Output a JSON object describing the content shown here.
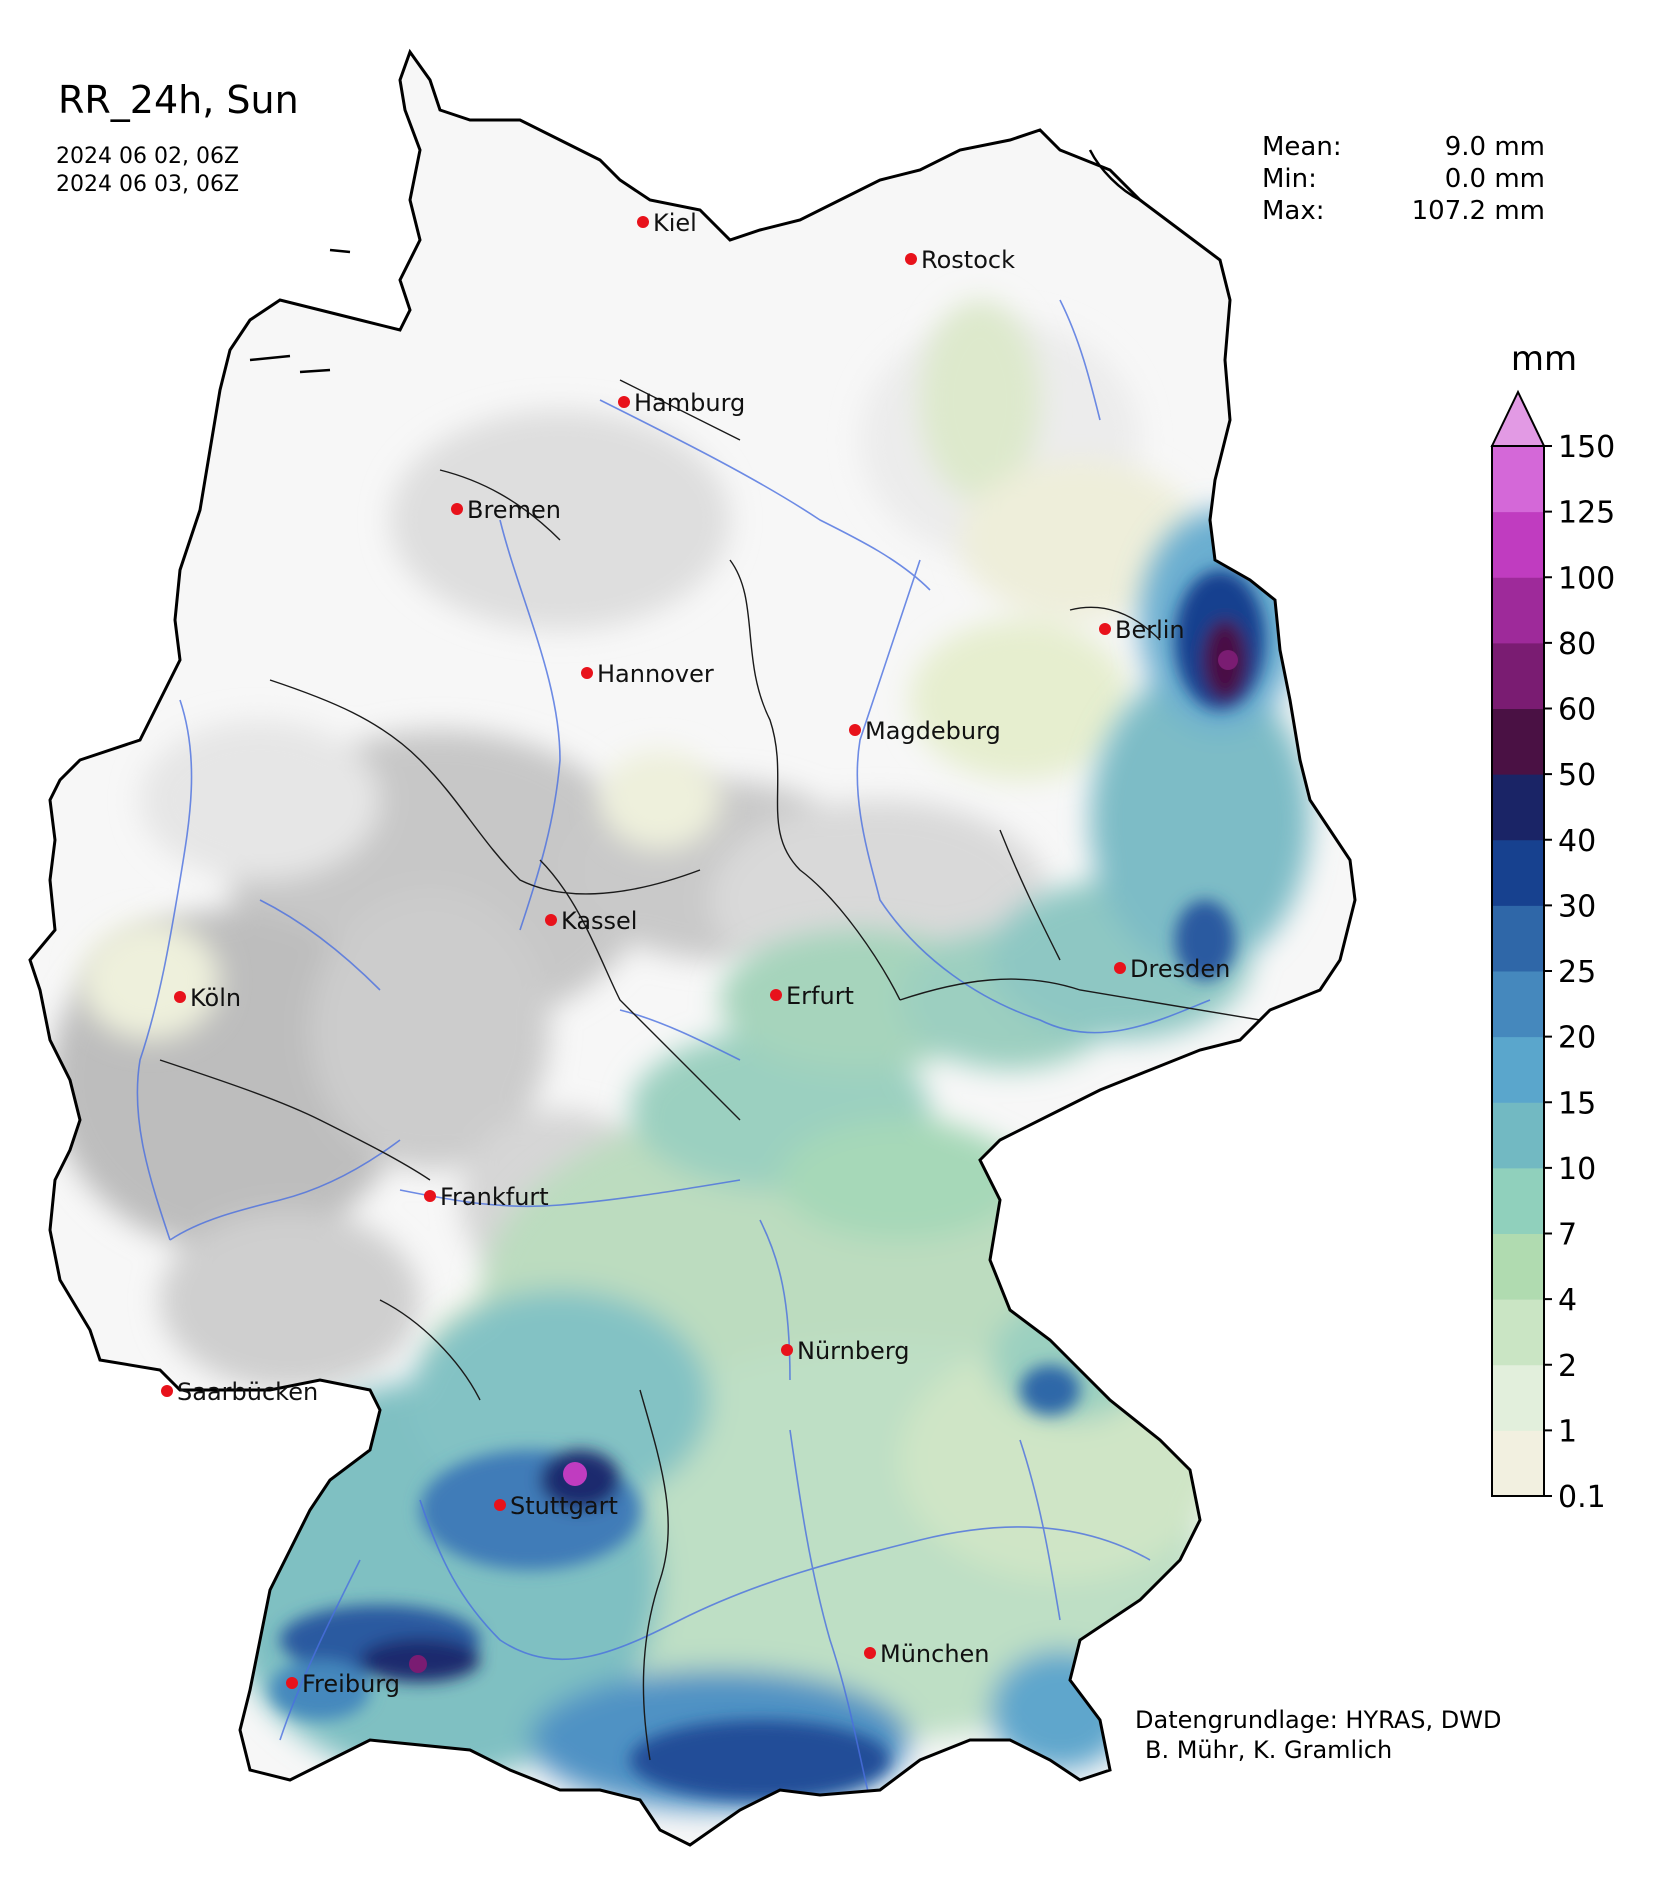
{
  "title": "RR_24h, Sun",
  "time_range": [
    "2024 06 02, 06Z",
    "2024 06 03, 06Z"
  ],
  "stats": [
    {
      "label": "Mean:",
      "value": "9.0 mm"
    },
    {
      "label": "Min:",
      "value": "0.0 mm"
    },
    {
      "label": "Max:",
      "value": "107.2 mm"
    }
  ],
  "colorbar": {
    "unit": "mm",
    "levels": [
      "0.1",
      "1",
      "2",
      "4",
      "7",
      "10",
      "15",
      "20",
      "25",
      "30",
      "40",
      "50",
      "60",
      "80",
      "100",
      "125",
      "150"
    ],
    "colors": [
      "#f2f0e0",
      "#e2efdc",
      "#cae5c4",
      "#b0dbb0",
      "#90d0bc",
      "#72b9c2",
      "#5aa6cc",
      "#4588bd",
      "#2f67a8",
      "#17418f",
      "#1a2466",
      "#4a1144",
      "#7a1c72",
      "#9e2a9a",
      "#c03cc0",
      "#d468d8"
    ],
    "extend_color": "#e29ae4"
  },
  "cities": [
    {
      "name": "Kiel"
    },
    {
      "name": "Rostock"
    },
    {
      "name": "Hamburg"
    },
    {
      "name": "Bremen"
    },
    {
      "name": "Berlin"
    },
    {
      "name": "Hannover"
    },
    {
      "name": "Magdeburg"
    },
    {
      "name": "Kassel"
    },
    {
      "name": "Dresden"
    },
    {
      "name": "Köln"
    },
    {
      "name": "Erfurt"
    },
    {
      "name": "Frankfurt"
    },
    {
      "name": "Nürnberg"
    },
    {
      "name": "Saarbücken"
    },
    {
      "name": "Stuttgart"
    },
    {
      "name": "München"
    },
    {
      "name": "Freiburg"
    }
  ],
  "credit": [
    "Datengrundlage: HYRAS, DWD",
    "B. Mühr, K. Gramlich"
  ]
}
